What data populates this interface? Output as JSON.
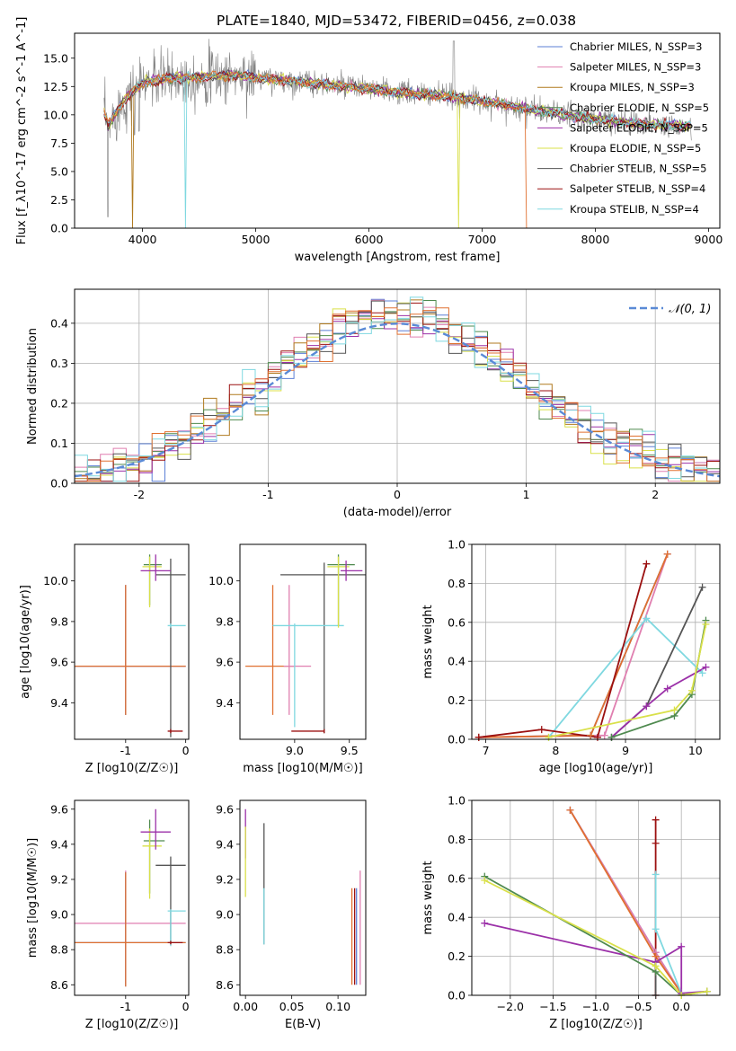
{
  "figure_title": "PLATE=1840, MJD=53472, FIBERID=0456, z=0.038",
  "colors": {
    "Chabrier MILES": "#5b7fd6",
    "Salpeter MILES": "#e07fb0",
    "Kroupa MILES": "#b07a1f",
    "Chabrier ELODIE": "#4f8a4f",
    "Salpeter ELODIE": "#9b30a8",
    "Kroupa ELODIE": "#d9e04a",
    "Chabrier STELIB": "#555555",
    "Salpeter STELIB": "#9b1010",
    "Kroupa STELIB": "#7fd8e0",
    "Orange": "#e07030",
    "Normal": "#5a8ad6"
  },
  "chart_data": [
    {
      "name": "spectrum",
      "type": "line",
      "xlabel": "wavelength [Angstrom, rest frame]",
      "ylabel": "Flux [f_λ10^-17 erg cm^-2 s^-1 A^-1]",
      "xlim": [
        3400,
        9100
      ],
      "ylim": [
        0,
        17.2
      ],
      "xticks": [
        4000,
        5000,
        6000,
        7000,
        8000,
        9000
      ],
      "yticks": [
        0.0,
        2.5,
        5.0,
        7.5,
        10.0,
        12.5,
        15.0
      ],
      "legend_position": "top-right",
      "legend": [
        "Chabrier MILES, N_SSP=3",
        "Salpeter MILES, N_SSP=3",
        "Kroupa MILES, N_SSP=3",
        "Chabrier ELODIE, N_SSP=5",
        "Salpeter ELODIE, N_SSP=5",
        "Kroupa ELODIE, N_SSP=5",
        "Chabrier STELIB, N_SSP=5",
        "Salpeter STELIB, N_SSP=4",
        "Kroupa STELIB, N_SSP=4"
      ],
      "data_envelope": {
        "x": [
          3650,
          3700,
          3800,
          3900,
          4000,
          4100,
          4200,
          4400,
          4600,
          4800,
          5000,
          5200,
          5400,
          5600,
          5800,
          6000,
          6200,
          6400,
          6600,
          6800,
          7000,
          7200,
          7400,
          7600,
          7800,
          8000,
          8200,
          8400,
          8600,
          8850
        ],
        "y": [
          10.5,
          9.0,
          10.8,
          12.0,
          12.8,
          13.0,
          13.2,
          13.3,
          13.4,
          13.5,
          13.3,
          13.1,
          12.9,
          12.7,
          12.5,
          12.3,
          12.0,
          11.9,
          11.7,
          11.5,
          11.2,
          10.9,
          10.5,
          10.2,
          9.9,
          9.6,
          9.4,
          9.2,
          9.1,
          9.0
        ]
      },
      "absorption_dips": [
        3890,
        3930,
        4340,
        4380,
        6790,
        7400
      ]
    },
    {
      "name": "residuals",
      "type": "step-histogram",
      "xlabel": "(data-model)/error",
      "ylabel": "Normed distribution",
      "xlim": [
        -2.5,
        2.5
      ],
      "ylim": [
        0,
        0.485
      ],
      "xticks": [
        -2,
        -1,
        0,
        1,
        2
      ],
      "yticks": [
        0.0,
        0.1,
        0.2,
        0.3,
        0.4
      ],
      "grid": true,
      "legend_position": "top-right",
      "legend": [
        "𝒩(0, 1)"
      ],
      "bins": 50
    },
    {
      "name": "age-vs-Z",
      "type": "errorbar",
      "xlabel": "Z [log10(Z/Z☉)]",
      "ylabel": "age  [log10(age/yr)]",
      "xlim": [
        -1.85,
        0.05
      ],
      "ylim": [
        9.22,
        10.18
      ],
      "xticks": [
        -1,
        0
      ],
      "yticks": [
        9.4,
        9.6,
        9.8,
        10.0
      ]
    },
    {
      "name": "age-vs-mass",
      "type": "errorbar",
      "xlabel": "mass [log10(M/M☉)]",
      "ylabel": "",
      "xlim": [
        8.5,
        9.65
      ],
      "ylim": [
        9.22,
        10.18
      ],
      "xticks": [
        9.0,
        9.5
      ],
      "yticks": [
        9.4,
        9.6,
        9.8,
        10.0
      ]
    },
    {
      "name": "massweight-vs-age",
      "type": "line",
      "xlabel": "age  [log10(age/yr)]",
      "ylabel": "mass weight",
      "xlim": [
        6.8,
        10.35
      ],
      "ylim": [
        0,
        1.0
      ],
      "xticks": [
        7,
        8,
        9,
        10
      ],
      "yticks": [
        0.0,
        0.2,
        0.4,
        0.6,
        0.8,
        1.0
      ]
    },
    {
      "name": "mass-vs-Z",
      "type": "errorbar",
      "xlabel": "Z [log10(Z/Z☉)]",
      "ylabel": "mass [log10(M/M☉)]",
      "xlim": [
        -1.85,
        0.05
      ],
      "ylim": [
        8.54,
        9.65
      ],
      "xticks": [
        -1,
        0
      ],
      "yticks": [
        8.6,
        8.8,
        9.0,
        9.2,
        9.4,
        9.6
      ]
    },
    {
      "name": "mass-vs-ebv",
      "type": "errorbar",
      "xlabel": "E(B-V)",
      "ylabel": "",
      "xlim": [
        -0.006,
        0.13
      ],
      "ylim": [
        8.54,
        9.65
      ],
      "xticks": [
        0.0,
        0.05,
        0.1
      ],
      "yticks": [
        8.6,
        8.8,
        9.0,
        9.2,
        9.4,
        9.6
      ]
    },
    {
      "name": "massweight-vs-Z",
      "type": "line",
      "xlabel": "Z [log10(Z/Z☉)]",
      "ylabel": "mass weight",
      "xlim": [
        -2.45,
        0.45
      ],
      "ylim": [
        0,
        1.0
      ],
      "xticks": [
        -2.0,
        -1.5,
        -1.0,
        -0.5,
        0.0
      ],
      "yticks": [
        0.0,
        0.2,
        0.4,
        0.6,
        0.8,
        1.0
      ]
    }
  ]
}
